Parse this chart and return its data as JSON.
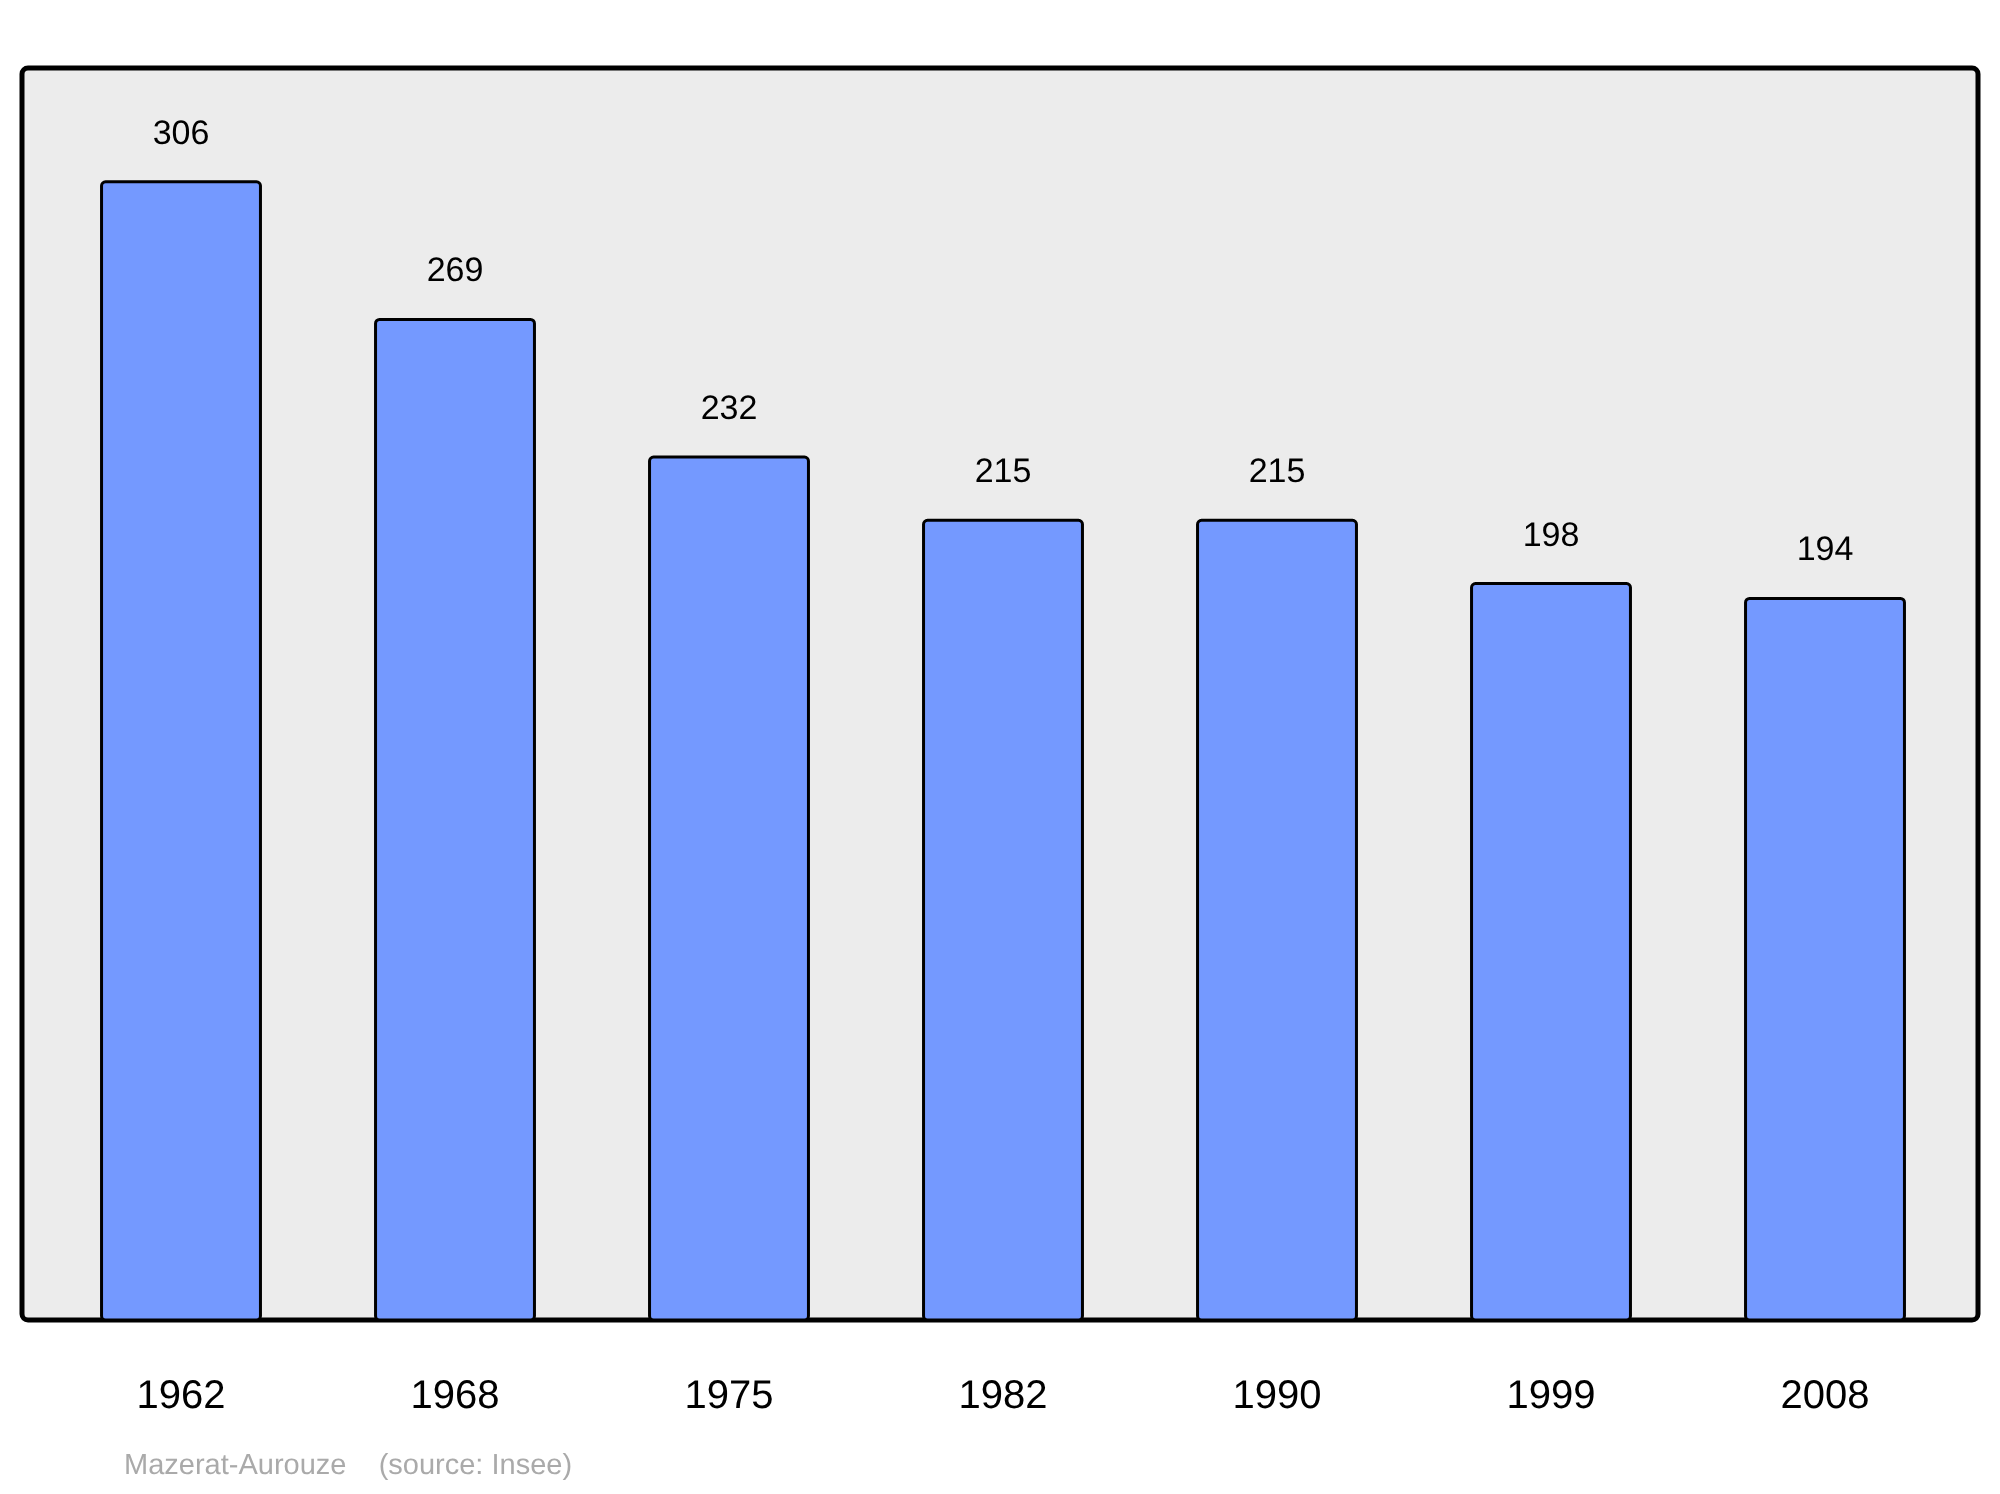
{
  "chart_data": {
    "type": "bar",
    "categories": [
      "1962",
      "1968",
      "1975",
      "1982",
      "1990",
      "1999",
      "2008"
    ],
    "values": [
      306,
      269,
      232,
      215,
      215,
      198,
      194
    ],
    "color": "#7499ff",
    "data_labels": true,
    "annotations": [
      "Mazerat-Aurouze    (source: Insee)"
    ]
  }
}
